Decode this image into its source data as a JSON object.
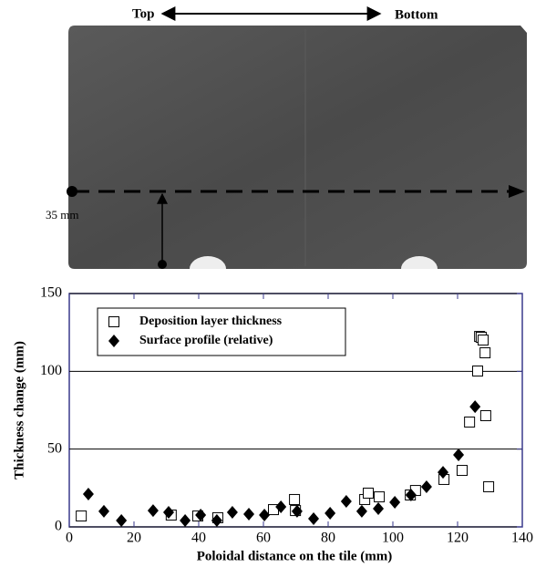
{
  "photo": {
    "top_label": "Top",
    "bottom_label": "Bottom",
    "dimension_label": "35 mm"
  },
  "chart_data": {
    "type": "scatter",
    "x_label": "Poloidal distance on the tile (mm)",
    "y_label": "Thickness change (mm)",
    "xlim": [
      0,
      140
    ],
    "xticks": [
      0,
      20,
      40,
      60,
      80,
      100,
      120,
      140
    ],
    "ylim": [
      0,
      150
    ],
    "yticks": [
      0,
      50,
      100,
      150
    ],
    "grid": true,
    "legend": "upper left",
    "series": [
      {
        "name": "Deposition layer thickness",
        "color": "#000000",
        "marker": "square",
        "x": [
          3.7,
          31.5,
          39.7,
          45.9,
          63.1,
          69.6,
          69.9,
          91.3,
          92.4,
          95.8,
          105.4,
          107.0,
          115.8,
          121.4,
          123.7,
          126.2,
          126.8,
          127.3,
          127.9,
          128.5,
          128.7,
          129.6
        ],
        "values": [
          7.0,
          7.6,
          7.0,
          5.9,
          11.1,
          17.6,
          10.5,
          17.6,
          21.7,
          19.3,
          20.5,
          23.4,
          30.5,
          36.3,
          67.4,
          100.2,
          122.4,
          121.9,
          120.1,
          111.9,
          71.5,
          25.8
        ]
      },
      {
        "name": "Surface profile (relative)",
        "color": "#000000",
        "marker": "diamond",
        "x": [
          5.9,
          10.7,
          16.1,
          25.9,
          30.7,
          35.8,
          40.6,
          45.6,
          50.4,
          55.5,
          60.3,
          65.4,
          70.4,
          75.5,
          80.6,
          85.6,
          90.4,
          95.5,
          100.6,
          105.6,
          110.4,
          115.5,
          120.3,
          125.4
        ],
        "values": [
          21.1,
          10.0,
          4.1,
          10.5,
          9.4,
          4.1,
          7.6,
          4.1,
          9.4,
          8.2,
          7.6,
          12.9,
          10.0,
          5.3,
          8.8,
          16.4,
          10.0,
          11.7,
          15.8,
          20.5,
          25.8,
          35.1,
          46.3,
          77.3
        ]
      }
    ]
  }
}
